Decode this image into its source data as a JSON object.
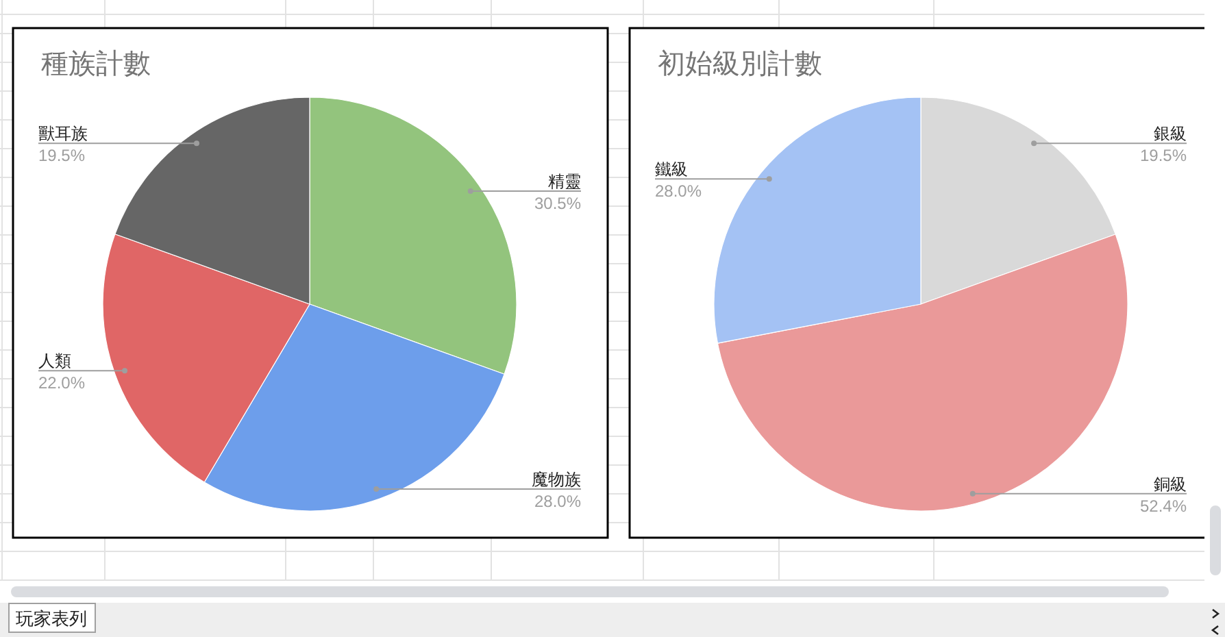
{
  "chart_data": [
    {
      "type": "pie",
      "title": "種族計數",
      "categories": [
        "精靈",
        "魔物族",
        "人類",
        "獸耳族"
      ],
      "values": [
        30.5,
        28.0,
        22.0,
        19.5
      ],
      "colors": [
        "#93c47d",
        "#6d9eeb",
        "#e06666",
        "#666666"
      ],
      "value_labels": [
        "30.5%",
        "28.0%",
        "22.0%",
        "19.5%"
      ]
    },
    {
      "type": "pie",
      "title": "初始級別計數",
      "categories": [
        "銀級",
        "銅級",
        "鐵級"
      ],
      "values": [
        19.5,
        52.4,
        28.0
      ],
      "colors": [
        "#d9d9d9",
        "#ea9999",
        "#a4c2f4"
      ],
      "value_labels": [
        "19.5%",
        "52.4%",
        "28.0%"
      ]
    },
    {
      "type": "other",
      "annotations": [
        "玩家表列"
      ]
    }
  ]
}
